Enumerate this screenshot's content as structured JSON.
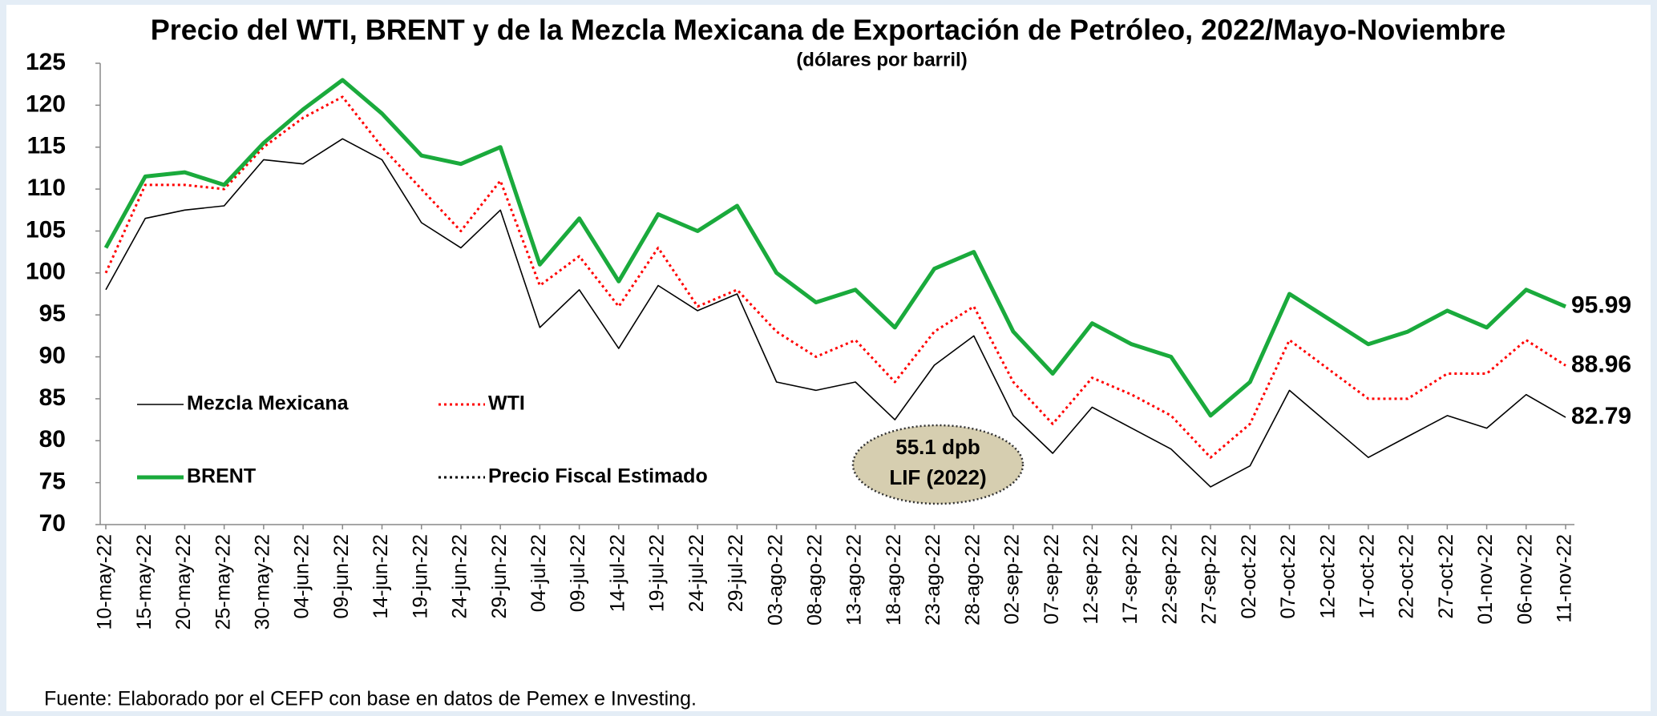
{
  "chart_data": {
    "type": "line",
    "title": "Precio del WTI, BRENT y de la Mezcla Mexicana de Exportación de Petróleo, 2022/Mayo-Noviembre",
    "subtitle": "(dólares por barril)",
    "source": "Fuente: Elaborado por el CEFP con base en datos de Pemex e Investing.",
    "categories": [
      "10-may-22",
      "15-may-22",
      "20-may-22",
      "25-may-22",
      "30-may-22",
      "04-jun-22",
      "09-jun-22",
      "14-jun-22",
      "19-jun-22",
      "24-jun-22",
      "29-jun-22",
      "04-jul-22",
      "09-jul-22",
      "14-jul-22",
      "19-jul-22",
      "24-jul-22",
      "29-jul-22",
      "03-ago-22",
      "08-ago-22",
      "13-ago-22",
      "18-ago-22",
      "23-ago-22",
      "28-ago-22",
      "02-sep-22",
      "07-sep-22",
      "12-sep-22",
      "17-sep-22",
      "22-sep-22",
      "27-sep-22",
      "02-oct-22",
      "07-oct-22",
      "12-oct-22",
      "17-oct-22",
      "22-oct-22",
      "27-oct-22",
      "01-nov-22",
      "06-nov-22",
      "11-nov-22"
    ],
    "series": [
      {
        "name": "Mezcla Mexicana",
        "color": "#000000",
        "style": "thin",
        "values": [
          98,
          106.5,
          107.5,
          108,
          113.5,
          113,
          116,
          113.5,
          106,
          103,
          107.5,
          93.5,
          98,
          91,
          98.5,
          95.5,
          97.5,
          87,
          86,
          87,
          82.5,
          89,
          92.5,
          83,
          78.5,
          84,
          81.5,
          79,
          74.5,
          77,
          86,
          82,
          78,
          80.5,
          83,
          81.5,
          85.5,
          82.79
        ]
      },
      {
        "name": "WTI",
        "color": "#ff0000",
        "style": "dotted",
        "values": [
          100,
          110.5,
          110.5,
          110,
          115,
          118.5,
          121,
          115,
          110,
          105,
          111,
          98.5,
          102,
          96,
          103,
          96,
          98,
          93,
          90,
          92,
          87,
          93,
          96,
          87,
          82,
          87.5,
          85.5,
          83,
          78,
          82,
          92,
          88.5,
          85,
          85,
          88,
          88,
          92,
          88.96
        ]
      },
      {
        "name": "BRENT",
        "color": "#1aaa3c",
        "style": "thick",
        "values": [
          103,
          111.5,
          112,
          110.5,
          115.5,
          119.5,
          123,
          119,
          114,
          113,
          115,
          101,
          106.5,
          99,
          107,
          105,
          108,
          100,
          96.5,
          98,
          93.5,
          100.5,
          102.5,
          93,
          88,
          94,
          91.5,
          90,
          83,
          87,
          97.5,
          94.5,
          91.5,
          93,
          95.5,
          93.5,
          98,
          95.99
        ]
      }
    ],
    "reference_line": {
      "name": "Precio Fiscal Estimado",
      "value": 55.1,
      "color": "#000000",
      "style": "dotted"
    },
    "annotation": [
      "55.1 dpb",
      "LIF (2022)"
    ],
    "ylim": [
      70,
      125
    ],
    "yticks": [
      70,
      75,
      80,
      85,
      90,
      95,
      100,
      105,
      110,
      115,
      120,
      125
    ],
    "end_labels": true
  }
}
